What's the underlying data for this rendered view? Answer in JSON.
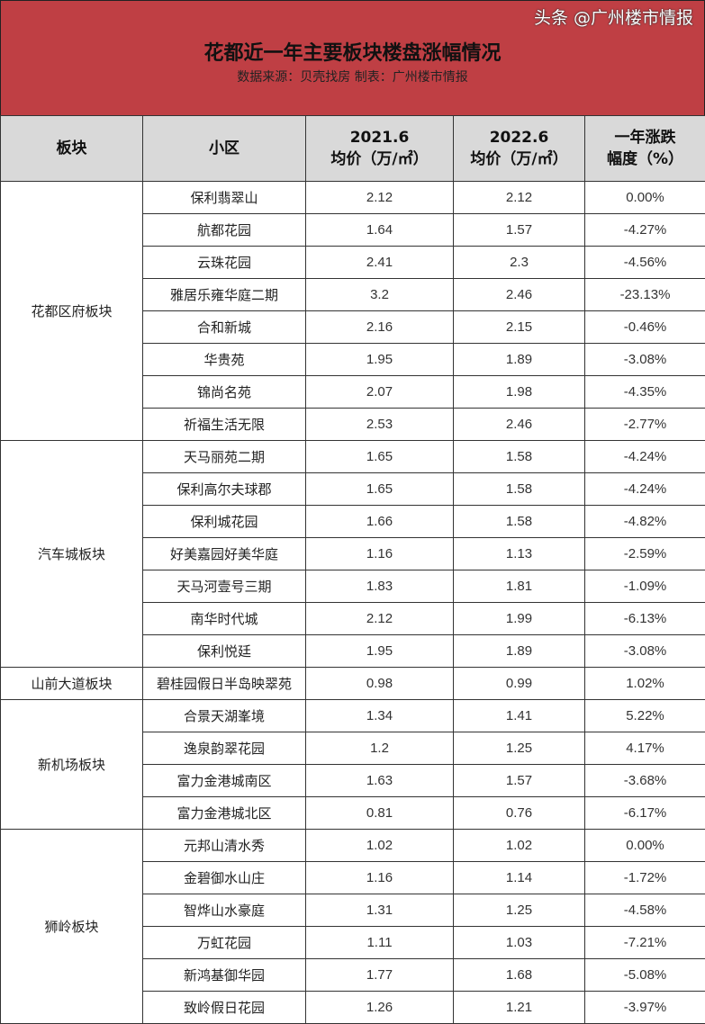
{
  "title": "花都近一年主要板块楼盘涨幅情况",
  "subtitle": "数据来源：贝壳找房 制表：广州楼市情报",
  "headers": {
    "block": "板块",
    "estate": "小区",
    "price2021_line1": "2021.6",
    "price2021_line2": "均价（万/㎡）",
    "price2022_line1": "2022.6",
    "price2022_line2": "均价（万/㎡）",
    "change_line1": "一年涨跌",
    "change_line2": "幅度（%）"
  },
  "groups": [
    {
      "block": "花都区府板块",
      "rows": [
        [
          "保利翡翠山",
          "2.12",
          "2.12",
          "0.00%"
        ],
        [
          "航都花园",
          "1.64",
          "1.57",
          "-4.27%"
        ],
        [
          "云珠花园",
          "2.41",
          "2.3",
          "-4.56%"
        ],
        [
          "雅居乐雍华庭二期",
          "3.2",
          "2.46",
          "-23.13%"
        ],
        [
          "合和新城",
          "2.16",
          "2.15",
          "-0.46%"
        ],
        [
          "华贵苑",
          "1.95",
          "1.89",
          "-3.08%"
        ],
        [
          "锦尚名苑",
          "2.07",
          "1.98",
          "-4.35%"
        ],
        [
          "祈福生活无限",
          "2.53",
          "2.46",
          "-2.77%"
        ]
      ]
    },
    {
      "block": "汽车城板块",
      "rows": [
        [
          "天马丽苑二期",
          "1.65",
          "1.58",
          "-4.24%"
        ],
        [
          "保利高尔夫球郡",
          "1.65",
          "1.58",
          "-4.24%"
        ],
        [
          "保利城花园",
          "1.66",
          "1.58",
          "-4.82%"
        ],
        [
          "好美嘉园好美华庭",
          "1.16",
          "1.13",
          "-2.59%"
        ],
        [
          "天马河壹号三期",
          "1.83",
          "1.81",
          "-1.09%"
        ],
        [
          "南华时代城",
          "2.12",
          "1.99",
          "-6.13%"
        ],
        [
          "保利悦廷",
          "1.95",
          "1.89",
          "-3.08%"
        ]
      ]
    },
    {
      "block": "山前大道板块",
      "rows": [
        [
          "碧桂园假日半岛映翠苑",
          "0.98",
          "0.99",
          "1.02%"
        ]
      ]
    },
    {
      "block": "新机场板块",
      "rows": [
        [
          "合景天湖峯境",
          "1.34",
          "1.41",
          "5.22%"
        ],
        [
          "逸泉韵翠花园",
          "1.2",
          "1.25",
          "4.17%"
        ],
        [
          "富力金港城南区",
          "1.63",
          "1.57",
          "-3.68%"
        ],
        [
          "富力金港城北区",
          "0.81",
          "0.76",
          "-6.17%"
        ]
      ]
    },
    {
      "block": "狮岭板块",
      "rows": [
        [
          "元邦山清水秀",
          "1.02",
          "1.02",
          "0.00%"
        ],
        [
          "金碧御水山庄",
          "1.16",
          "1.14",
          "-1.72%"
        ],
        [
          "智烨山水豪庭",
          "1.31",
          "1.25",
          "-4.58%"
        ],
        [
          "万虹花园",
          "1.11",
          "1.03",
          "-7.21%"
        ],
        [
          "新鸿基御华园",
          "1.77",
          "1.68",
          "-5.08%"
        ],
        [
          "致岭假日花园",
          "1.26",
          "1.21",
          "-3.97%"
        ]
      ]
    }
  ],
  "watermark": "头条 @广州楼市情报",
  "colors": {
    "banner": "#bf3f44",
    "header_bg": "#d9d9d9"
  }
}
